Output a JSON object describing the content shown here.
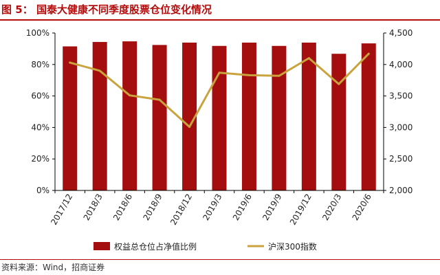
{
  "figure": {
    "label": "图",
    "number": "5",
    "separator": "：",
    "caption": "国泰大健康不同季度股票仓位变化情况"
  },
  "source": {
    "text": "资料来源：Wind，招商证券"
  },
  "colors": {
    "bar": "#a50e0e",
    "line": "#c9a33e",
    "title": "#b40b0b",
    "axis": "#000000"
  },
  "chart_data": {
    "type": "bar",
    "categories": [
      "2017/12",
      "2018/3",
      "2018/6",
      "2018/9",
      "2018/12",
      "2019/3",
      "2019/6",
      "2019/9",
      "2019/12",
      "2020/3",
      "2020/6"
    ],
    "series": [
      {
        "name": "权益总仓位占净值比例",
        "type": "bar",
        "axis": "left",
        "values": [
          91.5,
          94.3,
          94.7,
          92.4,
          93.9,
          91.8,
          93.9,
          91.8,
          93.9,
          86.8,
          93.4
        ]
      },
      {
        "name": "沪深300指数",
        "type": "line",
        "axis": "right",
        "values": [
          4030,
          3900,
          3510,
          3440,
          3010,
          3870,
          3830,
          3820,
          4100,
          3690,
          4170
        ]
      }
    ],
    "y_left": {
      "ylim": [
        0,
        100
      ],
      "ticks": [
        0,
        20,
        40,
        60,
        80,
        100
      ],
      "tick_labels": [
        "0%",
        "20%",
        "40%",
        "60%",
        "80%",
        "100%"
      ]
    },
    "y_right": {
      "ylim": [
        2000,
        4500
      ],
      "ticks": [
        2000,
        2500,
        3000,
        3500,
        4000,
        4500
      ],
      "tick_labels": [
        "2,000",
        "2,500",
        "3,000",
        "3,500",
        "4,000",
        "4,500"
      ]
    },
    "grid": false,
    "legend": "bottom"
  }
}
